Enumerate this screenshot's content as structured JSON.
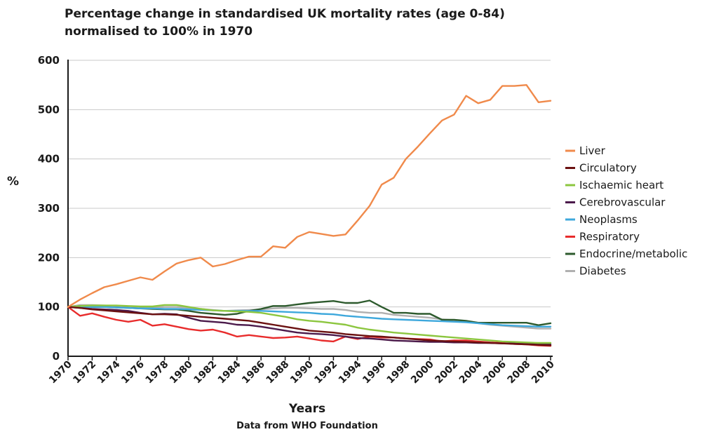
{
  "chart_data": {
    "type": "line",
    "title_line1": "Percentage change in standardised UK mortality rates (age 0-84)",
    "title_line2": "normalised to 100% in 1970",
    "ylabel": "%",
    "xlabel": "Years",
    "source": "Data from WHO Foundation",
    "ylim": [
      0,
      600
    ],
    "yticks": [
      0,
      100,
      200,
      300,
      400,
      500,
      600
    ],
    "xlim": [
      1970,
      2010
    ],
    "xticks": [
      1970,
      1972,
      1974,
      1976,
      1978,
      1980,
      1982,
      1984,
      1986,
      1988,
      1990,
      1992,
      1994,
      1996,
      1998,
      2000,
      2002,
      2004,
      2006,
      2008,
      2010
    ],
    "grid": true,
    "legend_position": "right",
    "x": [
      1970,
      1971,
      1972,
      1973,
      1974,
      1975,
      1976,
      1977,
      1978,
      1979,
      1980,
      1981,
      1982,
      1983,
      1984,
      1985,
      1986,
      1987,
      1988,
      1989,
      1990,
      1991,
      1992,
      1993,
      1994,
      1995,
      1996,
      1997,
      1998,
      1999,
      2000,
      2001,
      2002,
      2003,
      2004,
      2005,
      2006,
      2007,
      2008,
      2009,
      2010
    ],
    "series": [
      {
        "name": "Liver",
        "color": "#f08a4b",
        "values": [
          100,
          115,
          128,
          140,
          146,
          153,
          160,
          155,
          172,
          188,
          195,
          200,
          182,
          187,
          195,
          202,
          202,
          223,
          220,
          242,
          252,
          248,
          244,
          247,
          275,
          305,
          348,
          362,
          400,
          425,
          452,
          478,
          490,
          528,
          513,
          520,
          548,
          548,
          550,
          515,
          518
        ]
      },
      {
        "name": "Circulatory",
        "color": "#6b1111",
        "values": [
          100,
          98,
          95,
          93,
          91,
          89,
          87,
          85,
          85,
          84,
          82,
          80,
          78,
          76,
          74,
          72,
          68,
          64,
          60,
          56,
          52,
          50,
          48,
          45,
          43,
          41,
          40,
          38,
          36,
          34,
          32,
          31,
          30,
          29,
          28,
          27,
          26,
          25,
          24,
          23,
          22
        ]
      },
      {
        "name": "Ischaemic heart",
        "color": "#8cc63f",
        "values": [
          100,
          102,
          103,
          103,
          103,
          102,
          101,
          101,
          104,
          104,
          100,
          96,
          93,
          92,
          91,
          90,
          88,
          84,
          80,
          75,
          72,
          70,
          67,
          64,
          58,
          54,
          51,
          48,
          46,
          44,
          42,
          40,
          38,
          36,
          34,
          32,
          30,
          29,
          28,
          27,
          27
        ]
      },
      {
        "name": "Cerebrovascular",
        "color": "#4b1a4b",
        "values": [
          100,
          98,
          96,
          95,
          94,
          92,
          88,
          85,
          86,
          85,
          78,
          72,
          70,
          68,
          64,
          63,
          60,
          56,
          52,
          48,
          46,
          45,
          43,
          40,
          37,
          36,
          34,
          32,
          31,
          30,
          29,
          29,
          28,
          28,
          27,
          27,
          26,
          26,
          25,
          25,
          24
        ]
      },
      {
        "name": "Neoplasms",
        "color": "#3ea8dc",
        "values": [
          100,
          100,
          100,
          100,
          99,
          98,
          97,
          97,
          96,
          96,
          95,
          94,
          93,
          92,
          92,
          92,
          92,
          91,
          90,
          89,
          88,
          86,
          85,
          82,
          80,
          78,
          76,
          75,
          74,
          73,
          72,
          71,
          70,
          69,
          67,
          65,
          63,
          62,
          61,
          60,
          60
        ]
      },
      {
        "name": "Respiratory",
        "color": "#e82c2c",
        "values": [
          100,
          82,
          87,
          80,
          74,
          70,
          74,
          62,
          65,
          60,
          55,
          52,
          54,
          48,
          40,
          43,
          40,
          37,
          38,
          40,
          36,
          32,
          30,
          40,
          35,
          40,
          38,
          38,
          36,
          35,
          34,
          30,
          32,
          32,
          30,
          28,
          27,
          25,
          24,
          22,
          21
        ]
      },
      {
        "name": "Endocrine/metabolic",
        "color": "#2d5a2d",
        "values": [
          100,
          102,
          100,
          100,
          99,
          98,
          97,
          96,
          95,
          95,
          92,
          88,
          86,
          84,
          86,
          92,
          96,
          102,
          102,
          105,
          108,
          110,
          112,
          108,
          108,
          113,
          100,
          88,
          88,
          86,
          86,
          74,
          74,
          72,
          68,
          68,
          68,
          68,
          68,
          63,
          67
        ]
      },
      {
        "name": "Diabetes",
        "color": "#b0b0b0",
        "values": [
          100,
          104,
          104,
          103,
          102,
          101,
          100,
          99,
          100,
          100,
          98,
          96,
          94,
          92,
          93,
          94,
          95,
          97,
          98,
          98,
          97,
          96,
          96,
          94,
          90,
          88,
          88,
          84,
          82,
          80,
          78,
          75,
          73,
          70,
          67,
          64,
          62,
          60,
          58,
          56,
          56
        ]
      }
    ]
  }
}
